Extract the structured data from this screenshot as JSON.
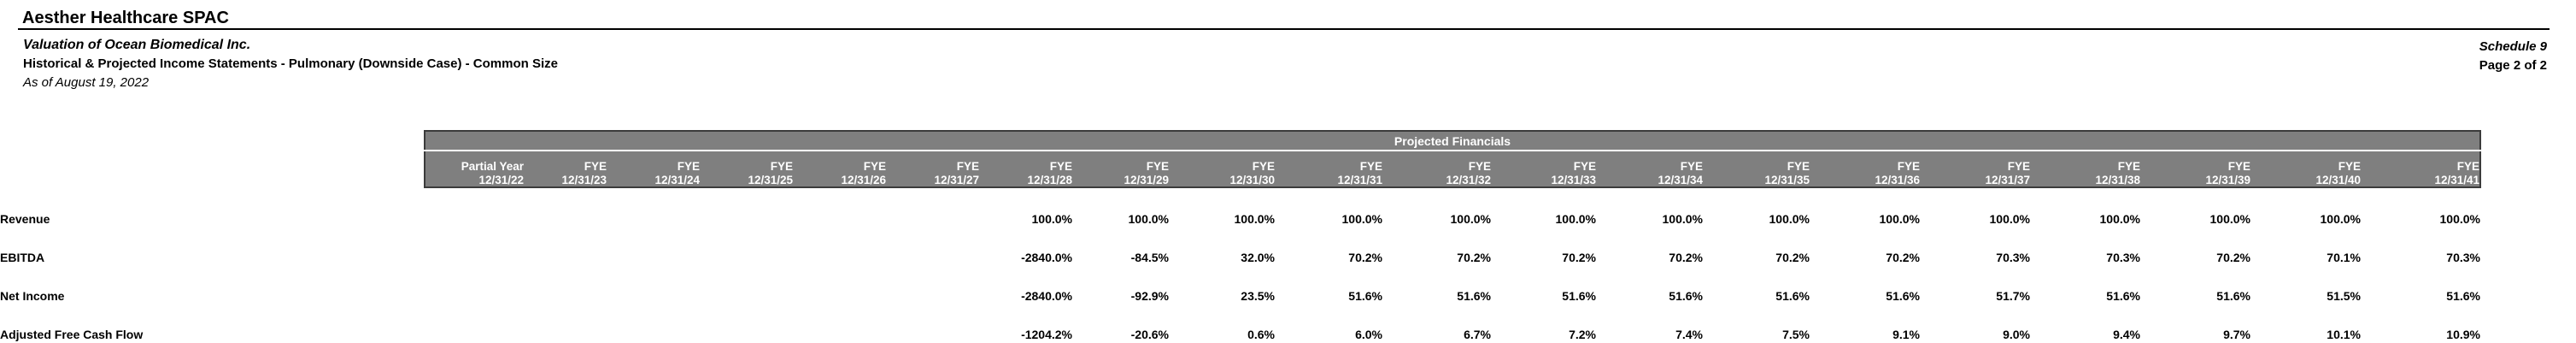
{
  "header": {
    "company": "Aesther Healthcare SPAC",
    "report_title": "Valuation of Ocean Biomedical Inc.",
    "report_subtitle": "Historical & Projected Income Statements - Pulmonary (Downside Case) - Common Size",
    "as_of": "As of August 19, 2022",
    "schedule": "Schedule 9",
    "page": "Page 2 of 2"
  },
  "table": {
    "band_title": "Projected Financials",
    "columns": [
      {
        "period": "Partial Year",
        "date": "12/31/22"
      },
      {
        "period": "FYE",
        "date": "12/31/23"
      },
      {
        "period": "FYE",
        "date": "12/31/24"
      },
      {
        "period": "FYE",
        "date": "12/31/25"
      },
      {
        "period": "FYE",
        "date": "12/31/26"
      },
      {
        "period": "FYE",
        "date": "12/31/27"
      },
      {
        "period": "FYE",
        "date": "12/31/28"
      },
      {
        "period": "FYE",
        "date": "12/31/29"
      },
      {
        "period": "FYE",
        "date": "12/31/30"
      },
      {
        "period": "FYE",
        "date": "12/31/31"
      },
      {
        "period": "FYE",
        "date": "12/31/32"
      },
      {
        "period": "FYE",
        "date": "12/31/33"
      },
      {
        "period": "FYE",
        "date": "12/31/34"
      },
      {
        "period": "FYE",
        "date": "12/31/35"
      },
      {
        "period": "FYE",
        "date": "12/31/36"
      },
      {
        "period": "FYE",
        "date": "12/31/37"
      },
      {
        "period": "FYE",
        "date": "12/31/38"
      },
      {
        "period": "FYE",
        "date": "12/31/39"
      },
      {
        "period": "FYE",
        "date": "12/31/40"
      },
      {
        "period": "FYE",
        "date": "12/31/41"
      }
    ],
    "rows": [
      {
        "label": "Revenue",
        "values": [
          "",
          "",
          "",
          "",
          "",
          "",
          "100.0%",
          "100.0%",
          "100.0%",
          "100.0%",
          "100.0%",
          "100.0%",
          "100.0%",
          "100.0%",
          "100.0%",
          "100.0%",
          "100.0%",
          "100.0%",
          "100.0%",
          "100.0%"
        ]
      },
      {
        "label": "EBITDA",
        "values": [
          "",
          "",
          "",
          "",
          "",
          "",
          "-2840.0%",
          "-84.5%",
          "32.0%",
          "70.2%",
          "70.2%",
          "70.2%",
          "70.2%",
          "70.2%",
          "70.2%",
          "70.3%",
          "70.3%",
          "70.2%",
          "70.1%",
          "70.3%"
        ]
      },
      {
        "label": "Net Income",
        "values": [
          "",
          "",
          "",
          "",
          "",
          "",
          "-2840.0%",
          "-92.9%",
          "23.5%",
          "51.6%",
          "51.6%",
          "51.6%",
          "51.6%",
          "51.6%",
          "51.6%",
          "51.7%",
          "51.6%",
          "51.6%",
          "51.5%",
          "51.6%"
        ]
      },
      {
        "label": "Adjusted Free Cash Flow",
        "values": [
          "",
          "",
          "",
          "",
          "",
          "",
          "-1204.2%",
          "-20.6%",
          "0.6%",
          "6.0%",
          "6.7%",
          "7.2%",
          "7.4%",
          "7.5%",
          "9.1%",
          "9.0%",
          "9.4%",
          "9.7%",
          "10.1%",
          "10.9%"
        ]
      }
    ]
  },
  "colors": {
    "band_background": "#7f7f7f",
    "band_text": "#ffffff",
    "band_border": "#3b3b3b",
    "body_text": "#000000",
    "page_background": "#ffffff"
  }
}
